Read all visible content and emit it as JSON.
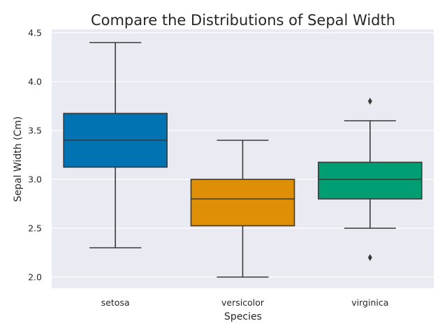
{
  "chart_data": {
    "type": "box",
    "title": "Compare the Distributions of Sepal Width",
    "xlabel": "Species",
    "ylabel": "Sepal Width (Cm)",
    "ylim": [
      1.89,
      4.52
    ],
    "yticks": [
      "2.0",
      "2.5",
      "3.0",
      "3.5",
      "4.0",
      "4.5"
    ],
    "grid": true,
    "background_color": "#EAEAF2",
    "categories": [
      "setosa",
      "versicolor",
      "virginica"
    ],
    "boxes": [
      {
        "category": "setosa",
        "whisker_low": 2.3,
        "q1": 3.125,
        "median": 3.4,
        "q3": 3.675,
        "whisker_high": 4.4,
        "outliers": [],
        "color": "#0173B2"
      },
      {
        "category": "versicolor",
        "whisker_low": 2.0,
        "q1": 2.525,
        "median": 2.8,
        "q3": 3.0,
        "whisker_high": 3.4,
        "outliers": [],
        "color": "#DE8F05"
      },
      {
        "category": "virginica",
        "whisker_low": 2.5,
        "q1": 2.8,
        "median": 3.0,
        "q3": 3.175,
        "whisker_high": 3.6,
        "outliers": [
          3.8,
          2.2
        ],
        "color": "#029E73"
      }
    ]
  }
}
